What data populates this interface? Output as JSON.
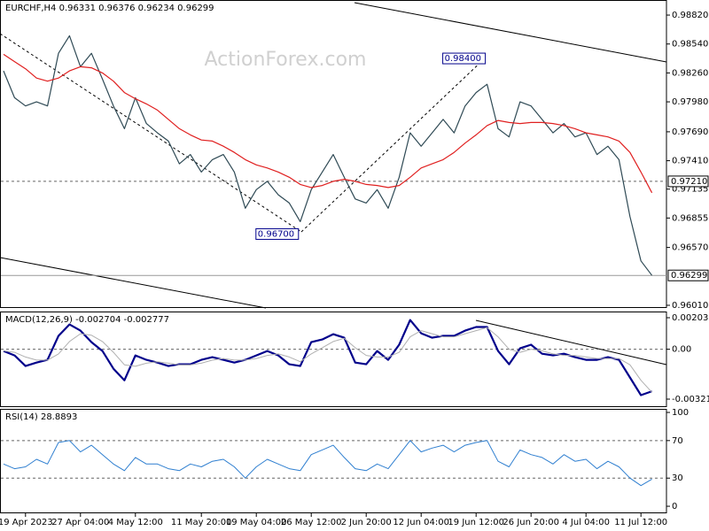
{
  "chart_data": [
    {
      "type": "line",
      "title": "EURCHF,H4  0.96331 0.96376 0.96234 0.96299",
      "watermark": "ActionForex.com",
      "ylim": [
        0.95984,
        0.98966
      ],
      "yticks": [
        {
          "value": 0.9882,
          "label": "0.98820"
        },
        {
          "value": 0.9854,
          "label": "0.98540"
        },
        {
          "value": 0.9826,
          "label": "0.98260"
        },
        {
          "value": 0.9798,
          "label": "0.97980"
        },
        {
          "value": 0.9769,
          "label": "0.97690"
        },
        {
          "value": 0.9741,
          "label": "0.97410"
        },
        {
          "value": 0.97135,
          "label": "0.97135"
        },
        {
          "value": 0.96855,
          "label": "0.96855"
        },
        {
          "value": 0.9657,
          "label": "0.96570"
        },
        {
          "value": 0.9601,
          "label": "0.96010"
        }
      ],
      "levels": [
        {
          "value": 0.9721,
          "label": "0.97210",
          "style": "dashed"
        },
        {
          "value": 0.96299,
          "label": "0.96299",
          "style": "solid"
        }
      ],
      "annotations": [
        {
          "label": "0.98400",
          "value": 0.984,
          "x": 44
        },
        {
          "label": "0.96700",
          "value": 0.967,
          "x": 27
        }
      ],
      "series": [
        {
          "color": "#2f4a55",
          "width": 1.2,
          "values": [
            0.9828,
            0.9802,
            0.9794,
            0.9798,
            0.9794,
            0.9845,
            0.9862,
            0.9832,
            0.9845,
            0.982,
            0.9794,
            0.9772,
            0.9802,
            0.9777,
            0.9768,
            0.976,
            0.9738,
            0.9747,
            0.973,
            0.9742,
            0.9747,
            0.973,
            0.9695,
            0.9713,
            0.9721,
            0.9708,
            0.97,
            0.9682,
            0.9713,
            0.973,
            0.9747,
            0.9725,
            0.9704,
            0.97,
            0.9713,
            0.9695,
            0.9725,
            0.9768,
            0.9755,
            0.9768,
            0.9781,
            0.9768,
            0.9794,
            0.9807,
            0.9815,
            0.9772,
            0.9764,
            0.9798,
            0.9794,
            0.9781,
            0.9768,
            0.9777,
            0.9764,
            0.9768,
            0.9747,
            0.9755,
            0.9742,
            0.9687,
            0.9644,
            0.96299
          ]
        },
        {
          "color": "#e02020",
          "width": 1.2,
          "values": [
            0.9844,
            0.9837,
            0.983,
            0.9821,
            0.9818,
            0.9821,
            0.9828,
            0.9832,
            0.9831,
            0.9826,
            0.9818,
            0.9807,
            0.9801,
            0.9796,
            0.979,
            0.9781,
            0.9772,
            0.9766,
            0.9761,
            0.976,
            0.9755,
            0.9749,
            0.9742,
            0.9737,
            0.9734,
            0.973,
            0.9725,
            0.9718,
            0.9715,
            0.9717,
            0.9721,
            0.9723,
            0.9721,
            0.9718,
            0.9717,
            0.9715,
            0.9717,
            0.9725,
            0.9734,
            0.9738,
            0.9742,
            0.9749,
            0.9758,
            0.9766,
            0.9775,
            0.978,
            0.9778,
            0.9777,
            0.9778,
            0.9778,
            0.9777,
            0.9775,
            0.9772,
            0.9768,
            0.9766,
            0.9764,
            0.976,
            0.9749,
            0.973,
            0.971
          ]
        }
      ]
    },
    {
      "type": "line",
      "title": "MACD(12,26,9) -0.002704 -0.002777",
      "ylim": [
        -0.003727,
        0.00243
      ],
      "yticks": [
        0.002031,
        {
          "value": 0,
          "label": "0.00"
        },
        -0.003214
      ],
      "levels": [
        0
      ],
      "level_style": "dashed",
      "series": [
        {
          "color": "#00008b",
          "width": 2.2,
          "values": [
            -0.00011,
            -0.0004,
            -0.00108,
            -0.00086,
            -0.00068,
            0.00086,
            0.0016,
            0.0012,
            0.00046,
            -0.00011,
            -0.00125,
            -0.002,
            -0.0004,
            -0.00068,
            -0.00086,
            -0.00108,
            -0.00097,
            -0.00097,
            -0.00068,
            -0.00051,
            -0.00068,
            -0.00086,
            -0.00068,
            -0.0004,
            -0.00011,
            -0.0004,
            -0.00097,
            -0.00108,
            0.00046,
            0.00063,
            0.00097,
            0.00074,
            -0.00086,
            -0.00097,
            -0.00011,
            -0.00068,
            0.00029,
            0.00188,
            0.00103,
            0.00074,
            0.00086,
            0.00086,
            0.0012,
            0.00143,
            0.00143,
            -0.00011,
            -0.00097,
            6e-05,
            0.00029,
            -0.00029,
            -0.0004,
            -0.00029,
            -0.00051,
            -0.00068,
            -0.00068,
            -0.00051,
            -0.00068,
            -0.00182,
            -0.00296,
            -0.002704
          ]
        },
        {
          "color": "#b0b0b0",
          "width": 1,
          "values": [
            -0.0001,
            -0.0002,
            -0.0005,
            -0.0007,
            -0.0007,
            -0.0003,
            0.0005,
            0.001,
            0.0009,
            0.0005,
            -0.0002,
            -0.001,
            -0.0011,
            -0.0009,
            -0.0008,
            -0.0009,
            -0.001,
            -0.001,
            -0.0009,
            -0.0007,
            -0.0006,
            -0.0007,
            -0.0007,
            -0.0006,
            -0.0004,
            -0.0003,
            -0.0005,
            -0.0008,
            -0.0003,
            0.0001,
            0.0005,
            0.0007,
            0.0001,
            -0.0004,
            -0.0005,
            -0.0005,
            -0.0002,
            0.0008,
            0.0012,
            0.001,
            0.0008,
            0.0008,
            0.001,
            0.0012,
            0.0014,
            0.0008,
            0,
            -0.0002,
            0,
            -0.0001,
            -0.0003,
            -0.0004,
            -0.0004,
            -0.0005,
            -0.0006,
            -0.0006,
            -0.0006,
            -0.001,
            -0.002,
            -0.002777
          ]
        }
      ]
    },
    {
      "type": "line",
      "title": "RSI(14) 28.8893",
      "ylim": [
        -7.5,
        103.8
      ],
      "yticks": [
        100,
        70,
        30,
        0
      ],
      "levels": [
        70,
        30
      ],
      "level_style": "dashed",
      "categories": [
        null,
        null,
        "19 Apr 2023",
        null,
        null,
        null,
        null,
        "27 Apr 04:00",
        null,
        null,
        null,
        null,
        "4 May 12:00",
        null,
        null,
        null,
        null,
        null,
        "11 May 20:00",
        null,
        null,
        null,
        null,
        "19 May 04:00",
        null,
        null,
        null,
        null,
        "26 May 12:00",
        null,
        null,
        null,
        null,
        "2 Jun 20:00",
        null,
        null,
        null,
        null,
        "12 Jun 04:00",
        null,
        null,
        null,
        null,
        "19 Jun 12:00",
        null,
        null,
        null,
        null,
        "26 Jun 20:00",
        null,
        null,
        null,
        null,
        "4 Jul 04:00",
        null,
        null,
        null,
        null,
        "11 Jul 12:00",
        null
      ],
      "series": [
        {
          "color": "#2f7fd0",
          "width": 1,
          "values": [
            45,
            40,
            42,
            50,
            45,
            68,
            70,
            58,
            65,
            55,
            45,
            38,
            52,
            45,
            45,
            40,
            38,
            45,
            42,
            48,
            50,
            42,
            30,
            42,
            50,
            45,
            40,
            38,
            55,
            60,
            65,
            52,
            40,
            38,
            45,
            40,
            55,
            70,
            58,
            62,
            65,
            58,
            65,
            68,
            70,
            48,
            42,
            60,
            55,
            52,
            45,
            55,
            48,
            50,
            40,
            48,
            42,
            30,
            22,
            28.8893
          ]
        }
      ]
    }
  ]
}
